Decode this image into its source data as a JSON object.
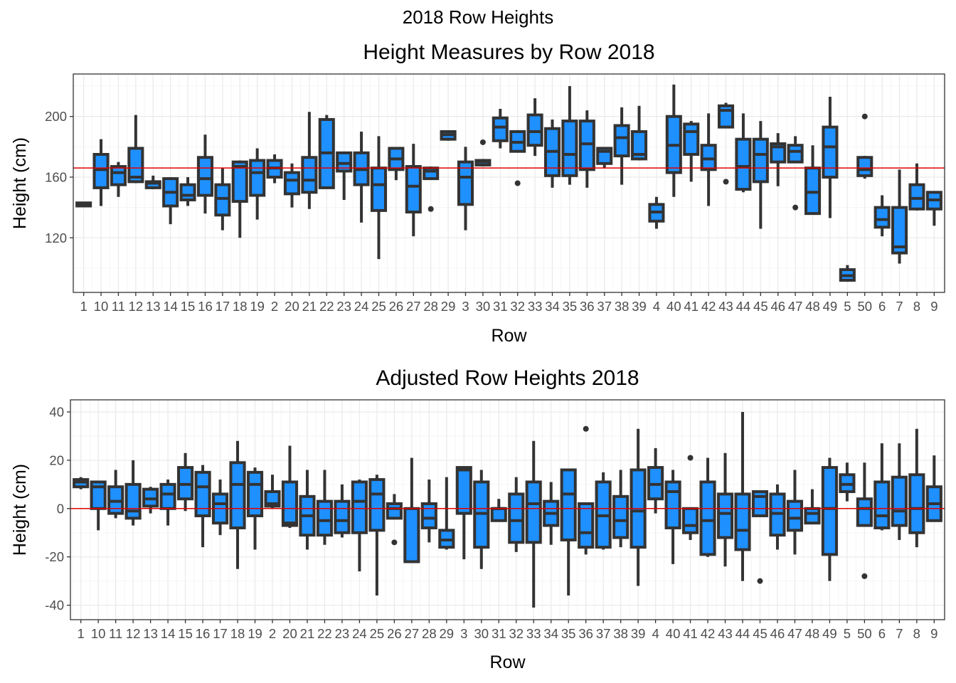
{
  "figure": {
    "title": "2018 Row Heights"
  },
  "colors": {
    "box_fill": "#1E90FF",
    "box_stroke": "#333333",
    "reference_line": "#E00000",
    "grid_major": "#ebebeb",
    "grid_minor": "#f5f5f5",
    "panel_border": "#333333"
  },
  "chart_data": [
    {
      "type": "boxplot",
      "title": "Height Measures by Row 2018",
      "xlabel": "Row",
      "ylabel": "Height (cm)",
      "ylim": [
        84,
        228
      ],
      "yticks": [
        120,
        160,
        200
      ],
      "grid": true,
      "hline": 166,
      "categories": [
        "1",
        "10",
        "11",
        "12",
        "13",
        "14",
        "15",
        "16",
        "17",
        "18",
        "19",
        "2",
        "20",
        "21",
        "22",
        "23",
        "24",
        "25",
        "26",
        "27",
        "28",
        "29",
        "3",
        "30",
        "31",
        "32",
        "33",
        "34",
        "35",
        "36",
        "37",
        "38",
        "39",
        "4",
        "40",
        "41",
        "42",
        "43",
        "44",
        "45",
        "46",
        "47",
        "48",
        "49",
        "5",
        "50",
        "6",
        "7",
        "8",
        "9"
      ],
      "boxes": [
        {
          "min": 141,
          "q1": 141,
          "median": 142,
          "q3": 143,
          "max": 143
        },
        {
          "min": 141,
          "q1": 153,
          "median": 165,
          "q3": 175,
          "max": 185
        },
        {
          "min": 147,
          "q1": 155,
          "median": 163,
          "q3": 167,
          "max": 170
        },
        {
          "min": 156,
          "q1": 157,
          "median": 160,
          "q3": 179,
          "max": 201
        },
        {
          "min": 152,
          "q1": 153,
          "median": 156,
          "q3": 157,
          "max": 161
        },
        {
          "min": 129,
          "q1": 141,
          "median": 150,
          "q3": 159,
          "max": 160
        },
        {
          "min": 141,
          "q1": 145,
          "median": 148,
          "q3": 155,
          "max": 160
        },
        {
          "min": 136,
          "q1": 148,
          "median": 159,
          "q3": 173,
          "max": 188
        },
        {
          "min": 125,
          "q1": 135,
          "median": 146,
          "q3": 155,
          "max": 166
        },
        {
          "min": 120,
          "q1": 144,
          "median": 167,
          "q3": 170,
          "max": 171
        },
        {
          "min": 132,
          "q1": 148,
          "median": 163,
          "q3": 171,
          "max": 179
        },
        {
          "min": 156,
          "q1": 160,
          "median": 166,
          "q3": 171,
          "max": 175
        },
        {
          "min": 140,
          "q1": 149,
          "median": 158,
          "q3": 163,
          "max": 169
        },
        {
          "min": 139,
          "q1": 150,
          "median": 158,
          "q3": 173,
          "max": 203
        },
        {
          "min": 153,
          "q1": 153,
          "median": 176,
          "q3": 198,
          "max": 201
        },
        {
          "min": 145,
          "q1": 164,
          "median": 169,
          "q3": 176,
          "max": 176
        },
        {
          "min": 130,
          "q1": 155,
          "median": 165,
          "q3": 176,
          "max": 190
        },
        {
          "min": 106,
          "q1": 138,
          "median": 155,
          "q3": 166,
          "max": 187
        },
        {
          "min": 158,
          "q1": 165,
          "median": 172,
          "q3": 179,
          "max": 179
        },
        {
          "min": 121,
          "q1": 137,
          "median": 154,
          "q3": 167,
          "max": 182
        },
        {
          "min": 159,
          "q1": 159,
          "median": 164,
          "q3": 166,
          "max": 167,
          "outliers": [
            139
          ]
        },
        {
          "min": 184,
          "q1": 185,
          "median": 188,
          "q3": 190,
          "max": 190
        },
        {
          "min": 125,
          "q1": 142,
          "median": 160,
          "q3": 170,
          "max": 180
        },
        {
          "min": 167,
          "q1": 168,
          "median": 170,
          "q3": 171,
          "max": 172,
          "outliers": [
            183
          ]
        },
        {
          "min": 179,
          "q1": 184,
          "median": 193,
          "q3": 199,
          "max": 205
        },
        {
          "min": 177,
          "q1": 177,
          "median": 183,
          "q3": 190,
          "max": 191,
          "outliers": [
            156
          ]
        },
        {
          "min": 174,
          "q1": 181,
          "median": 190,
          "q3": 201,
          "max": 212
        },
        {
          "min": 153,
          "q1": 161,
          "median": 177,
          "q3": 192,
          "max": 198
        },
        {
          "min": 155,
          "q1": 161,
          "median": 175,
          "q3": 197,
          "max": 220
        },
        {
          "min": 153,
          "q1": 165,
          "median": 182,
          "q3": 197,
          "max": 204
        },
        {
          "min": 166,
          "q1": 169,
          "median": 177,
          "q3": 179,
          "max": 179
        },
        {
          "min": 155,
          "q1": 174,
          "median": 186,
          "q3": 194,
          "max": 206
        },
        {
          "min": 171,
          "q1": 172,
          "median": 175,
          "q3": 190,
          "max": 207
        },
        {
          "min": 126,
          "q1": 131,
          "median": 137,
          "q3": 142,
          "max": 147
        },
        {
          "min": 147,
          "q1": 163,
          "median": 181,
          "q3": 200,
          "max": 221
        },
        {
          "min": 157,
          "q1": 175,
          "median": 190,
          "q3": 195,
          "max": 197
        },
        {
          "min": 141,
          "q1": 165,
          "median": 172,
          "q3": 181,
          "max": 202
        },
        {
          "min": 193,
          "q1": 193,
          "median": 204,
          "q3": 207,
          "max": 209,
          "outliers": [
            157
          ]
        },
        {
          "min": 150,
          "q1": 152,
          "median": 167,
          "q3": 185,
          "max": 202
        },
        {
          "min": 126,
          "q1": 157,
          "median": 175,
          "q3": 185,
          "max": 197
        },
        {
          "min": 154,
          "q1": 170,
          "median": 180,
          "q3": 182,
          "max": 189
        },
        {
          "min": 170,
          "q1": 170,
          "median": 177,
          "q3": 181,
          "max": 187,
          "outliers": [
            140
          ]
        },
        {
          "min": 136,
          "q1": 136,
          "median": 150,
          "q3": 166,
          "max": 181
        },
        {
          "min": 133,
          "q1": 160,
          "median": 180,
          "q3": 193,
          "max": 213
        },
        {
          "min": 91,
          "q1": 92,
          "median": 95,
          "q3": 99,
          "max": 102
        },
        {
          "min": 159,
          "q1": 161,
          "median": 165,
          "q3": 173,
          "max": 174,
          "outliers": [
            200
          ]
        },
        {
          "min": 121,
          "q1": 127,
          "median": 132,
          "q3": 140,
          "max": 148
        },
        {
          "min": 103,
          "q1": 110,
          "median": 114,
          "q3": 140,
          "max": 165
        },
        {
          "min": 138,
          "q1": 139,
          "median": 146,
          "q3": 155,
          "max": 169
        },
        {
          "min": 128,
          "q1": 139,
          "median": 145,
          "q3": 150,
          "max": 150
        }
      ]
    },
    {
      "type": "boxplot",
      "title": "Adjusted Row Heights 2018",
      "xlabel": "Row",
      "ylabel": "Height (cm)",
      "ylim": [
        -46,
        45
      ],
      "yticks": [
        -40,
        -20,
        0,
        20,
        40
      ],
      "grid": true,
      "hline": 0,
      "categories": [
        "1",
        "10",
        "11",
        "12",
        "13",
        "14",
        "15",
        "16",
        "17",
        "18",
        "19",
        "2",
        "20",
        "21",
        "22",
        "23",
        "24",
        "25",
        "26",
        "27",
        "28",
        "29",
        "3",
        "30",
        "31",
        "32",
        "33",
        "34",
        "35",
        "36",
        "37",
        "38",
        "39",
        "4",
        "40",
        "41",
        "42",
        "43",
        "44",
        "45",
        "46",
        "47",
        "48",
        "49",
        "5",
        "50",
        "6",
        "7",
        "8",
        "9"
      ],
      "boxes": [
        {
          "min": 8,
          "q1": 9,
          "median": 11,
          "q3": 12,
          "max": 13
        },
        {
          "min": -9,
          "q1": 0,
          "median": 9,
          "q3": 11,
          "max": 11
        },
        {
          "min": -4,
          "q1": -2,
          "median": 3,
          "q3": 9,
          "max": 16
        },
        {
          "min": -7,
          "q1": -4,
          "median": -1,
          "q3": 10,
          "max": 20
        },
        {
          "min": -2,
          "q1": 1,
          "median": 4,
          "q3": 8,
          "max": 9
        },
        {
          "min": -7,
          "q1": 0,
          "median": 6,
          "q3": 10,
          "max": 12
        },
        {
          "min": -1,
          "q1": 4,
          "median": 10,
          "q3": 17,
          "max": 23
        },
        {
          "min": -16,
          "q1": -3,
          "median": 9,
          "q3": 15,
          "max": 18
        },
        {
          "min": -11,
          "q1": -6,
          "median": 2,
          "q3": 6,
          "max": 12
        },
        {
          "min": -25,
          "q1": -8,
          "median": 10,
          "q3": 19,
          "max": 28
        },
        {
          "min": -17,
          "q1": -3,
          "median": 10,
          "q3": 15,
          "max": 17
        },
        {
          "min": 0,
          "q1": 1,
          "median": 2,
          "q3": 7,
          "max": 14
        },
        {
          "min": -8,
          "q1": -7,
          "median": -6,
          "q3": 11,
          "max": 26
        },
        {
          "min": -17,
          "q1": -11,
          "median": -3,
          "q3": 5,
          "max": 16
        },
        {
          "min": -15,
          "q1": -11,
          "median": -5,
          "q3": 3,
          "max": 16
        },
        {
          "min": -12,
          "q1": -10,
          "median": -5,
          "q3": 3,
          "max": 10
        },
        {
          "min": -26,
          "q1": -10,
          "median": 3,
          "q3": 11,
          "max": 12
        },
        {
          "min": -36,
          "q1": -9,
          "median": 6,
          "q3": 12,
          "max": 14
        },
        {
          "min": -4,
          "q1": -4,
          "median": 0,
          "q3": 2,
          "max": 6,
          "outliers": [
            -14
          ]
        },
        {
          "min": -22,
          "q1": -22,
          "median": -22,
          "q3": 0,
          "max": 21
        },
        {
          "min": -14,
          "q1": -8,
          "median": -4,
          "q3": 2,
          "max": 12
        },
        {
          "min": -17,
          "q1": -16,
          "median": -13,
          "q3": -9,
          "max": 13
        },
        {
          "min": -21,
          "q1": -2,
          "median": 16,
          "q3": 17,
          "max": 17
        },
        {
          "min": -25,
          "q1": -16,
          "median": -2,
          "q3": 11,
          "max": 16
        },
        {
          "min": -5,
          "q1": -5,
          "median": 0,
          "q3": 0,
          "max": 4
        },
        {
          "min": -18,
          "q1": -14,
          "median": -5,
          "q3": 6,
          "max": 13
        },
        {
          "min": -41,
          "q1": -14,
          "median": 2,
          "q3": 11,
          "max": 28
        },
        {
          "min": -15,
          "q1": -7,
          "median": -2,
          "q3": 3,
          "max": 11
        },
        {
          "min": -36,
          "q1": -13,
          "median": 6,
          "q3": 16,
          "max": 16
        },
        {
          "min": -19,
          "q1": -16,
          "median": -10,
          "q3": 2,
          "max": 2,
          "outliers": [
            33
          ]
        },
        {
          "min": -17,
          "q1": -16,
          "median": -3,
          "q3": 11,
          "max": 15
        },
        {
          "min": -16,
          "q1": -12,
          "median": -5,
          "q3": 5,
          "max": 16
        },
        {
          "min": -32,
          "q1": -16,
          "median": -1,
          "q3": 16,
          "max": 33
        },
        {
          "min": -2,
          "q1": 4,
          "median": 10,
          "q3": 17,
          "max": 25
        },
        {
          "min": -23,
          "q1": -8,
          "median": 7,
          "q3": 11,
          "max": 16
        },
        {
          "min": -13,
          "q1": -10,
          "median": -7,
          "q3": 0,
          "max": 0,
          "outliers": [
            21
          ]
        },
        {
          "min": -20,
          "q1": -19,
          "median": -5,
          "q3": 11,
          "max": 21
        },
        {
          "min": -24,
          "q1": -12,
          "median": -2,
          "q3": 6,
          "max": 23
        },
        {
          "min": -30,
          "q1": -17,
          "median": -9,
          "q3": 6,
          "max": 40
        },
        {
          "min": -3,
          "q1": -3,
          "median": 5,
          "q3": 7,
          "max": 7,
          "outliers": [
            -30
          ]
        },
        {
          "min": -17,
          "q1": -11,
          "median": -2,
          "q3": 6,
          "max": 10
        },
        {
          "min": -19,
          "q1": -9,
          "median": -4,
          "q3": 3,
          "max": 16
        },
        {
          "min": -6,
          "q1": -6,
          "median": -2,
          "q3": 0,
          "max": 8
        },
        {
          "min": -30,
          "q1": -19,
          "median": 0,
          "q3": 17,
          "max": 21
        },
        {
          "min": 3,
          "q1": 7,
          "median": 10,
          "q3": 14,
          "max": 19
        },
        {
          "min": -7,
          "q1": -7,
          "median": 0,
          "q3": 4,
          "max": 19,
          "outliers": [
            -28
          ]
        },
        {
          "min": -9,
          "q1": -8,
          "median": -3,
          "q3": 11,
          "max": 27
        },
        {
          "min": -13,
          "q1": -7,
          "median": -1,
          "q3": 13,
          "max": 27
        },
        {
          "min": -16,
          "q1": -10,
          "median": 0,
          "q3": 14,
          "max": 33
        },
        {
          "min": -5,
          "q1": -5,
          "median": 2,
          "q3": 9,
          "max": 22
        }
      ]
    }
  ]
}
